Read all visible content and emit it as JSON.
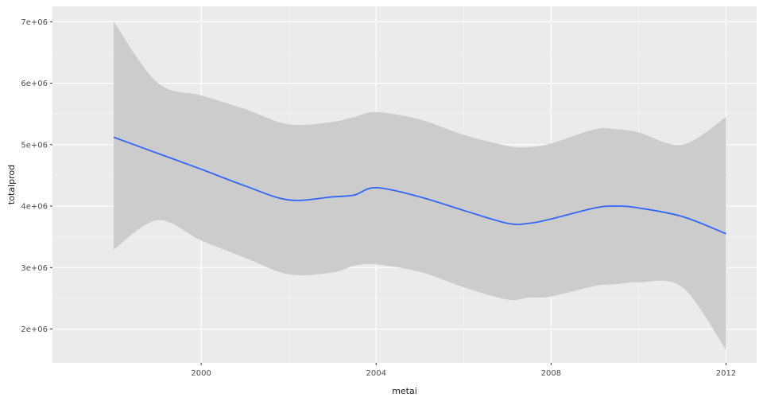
{
  "chart_data": {
    "type": "line",
    "title": "",
    "xlabel": "metai",
    "ylabel": "totalprod",
    "xlim": [
      1996.6,
      2012.7
    ],
    "ylim": [
      1450000,
      7250000
    ],
    "x_ticks": [
      2000,
      2004,
      2008,
      2012
    ],
    "x_tick_labels": [
      "2000",
      "2004",
      "2008",
      "2012"
    ],
    "y_ticks": [
      2000000,
      3000000,
      4000000,
      5000000,
      6000000,
      7000000
    ],
    "y_tick_labels": [
      "2e+06",
      "3e+06",
      "4e+06",
      "5e+06",
      "6e+06",
      "7e+06"
    ],
    "grid": true,
    "colors": {
      "panel": "#ebebeb",
      "grid_major": "#ffffff",
      "grid_minor": "#f5f5f5",
      "ribbon": "#cccccc",
      "line": "#3366ff"
    },
    "series": [
      {
        "x": [
          1998,
          1999,
          2000,
          2001,
          2002,
          2003,
          2003.5,
          2004,
          2005,
          2006,
          2007,
          2007.5,
          2008,
          2009,
          2009.5,
          2010,
          2011,
          2012
        ],
        "y": [
          5120000,
          4860000,
          4600000,
          4330000,
          4100000,
          4150000,
          4180000,
          4300000,
          4150000,
          3930000,
          3720000,
          3720000,
          3790000,
          3970000,
          4000000,
          3970000,
          3830000,
          3550000
        ],
        "ymin": [
          3290000,
          3770000,
          3440000,
          3160000,
          2890000,
          2920000,
          3030000,
          3050000,
          2930000,
          2680000,
          2480000,
          2510000,
          2530000,
          2700000,
          2730000,
          2760000,
          2680000,
          1660000
        ],
        "ymax": [
          7000000,
          6010000,
          5800000,
          5580000,
          5330000,
          5370000,
          5450000,
          5530000,
          5410000,
          5160000,
          4980000,
          4960000,
          5020000,
          5250000,
          5250000,
          5200000,
          5000000,
          5450000
        ]
      }
    ]
  }
}
